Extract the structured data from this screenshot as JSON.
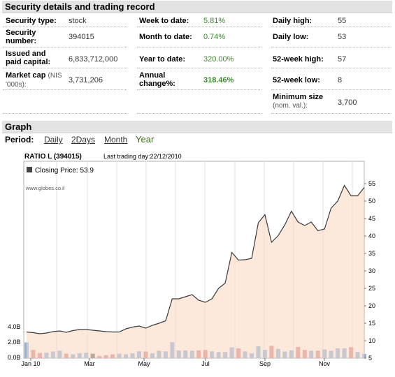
{
  "security_header": "Security details and trading record",
  "rows": [
    {
      "l1": "Security type:",
      "v1": "stock",
      "l2": "Week to date:",
      "v2": "5.81%",
      "l3": "Daily high:",
      "v3": "55"
    },
    {
      "l1": "Security number:",
      "v1": "394015",
      "l2": "Month to date:",
      "v2": "0.74%",
      "l3": "Daily low:",
      "v3": "53"
    },
    {
      "l1": "Issued and paid capital:",
      "v1": "6,833,712,000",
      "l2": "Year to date:",
      "v2": "320.00%",
      "l3": "52-week high:",
      "v3": "57"
    },
    {
      "l1": "Market cap",
      "l1_small": "(NIS '000s):",
      "v1": "3,731,206",
      "l2": "Annual change%:",
      "v2": "318.46%",
      "l3": "52-week low:",
      "v3": "8"
    }
  ],
  "min_size": {
    "label": "Minimum size",
    "small": "(nom. val.):",
    "value": "3,700"
  },
  "graph_header": "Graph",
  "period": {
    "label": "Period:",
    "daily": "Daily",
    "two_days": "2Days",
    "month": "Month",
    "year": "Year"
  },
  "chart_data": {
    "type": "line",
    "title": "RATIO L (394015)",
    "subtitle": "Last trading day:22/12/2010",
    "legend": "Closing Price: 53.9",
    "watermark": "www.globes.co.il",
    "x_labels": [
      "Jan 10",
      "Mar",
      "May",
      "Jul",
      "Sep",
      "Nov"
    ],
    "price_ticks": [
      55,
      50,
      45,
      40,
      35,
      30,
      25,
      20,
      15,
      10,
      5
    ],
    "volume_ticks": [
      "4.0B",
      "2.0B",
      "0.0B"
    ],
    "price": [
      12.5,
      12.3,
      12,
      12.2,
      12.6,
      12.8,
      12.4,
      12.9,
      13.2,
      13.2,
      13,
      12.8,
      12.6,
      12.5,
      12.5,
      13.4,
      13.9,
      14.2,
      13.6,
      14.4,
      15,
      15.7,
      22,
      22,
      22.6,
      23.2,
      21.6,
      21,
      22,
      25,
      26.5,
      35.3,
      33.1,
      33.2,
      33.6,
      43.8,
      46.1,
      38.2,
      40.1,
      43.2,
      47.1,
      44,
      43,
      44,
      41.5,
      42,
      48,
      50,
      54.5,
      51.5,
      51.5,
      53.9
    ],
    "volume": [
      1.05,
      0.55,
      0.35,
      0.36,
      0.44,
      0.5,
      0.3,
      0.25,
      0.33,
      0.36,
      0.3,
      0.15,
      0.2,
      0.25,
      0.3,
      0.26,
      0.32,
      0.45,
      0.44,
      0.32,
      0.5,
      0.45,
      1.07,
      0.51,
      0.51,
      0.5,
      0.52,
      0.55,
      0.45,
      0.4,
      0.41,
      0.72,
      0.65,
      0.45,
      0.33,
      0.79,
      0.55,
      0.82,
      0.62,
      0.44,
      0.52,
      0.75,
      0.55,
      0.5,
      0.5,
      0.58,
      0.49,
      0.66,
      0.65,
      0.73,
      0.41,
      0.28
    ]
  }
}
